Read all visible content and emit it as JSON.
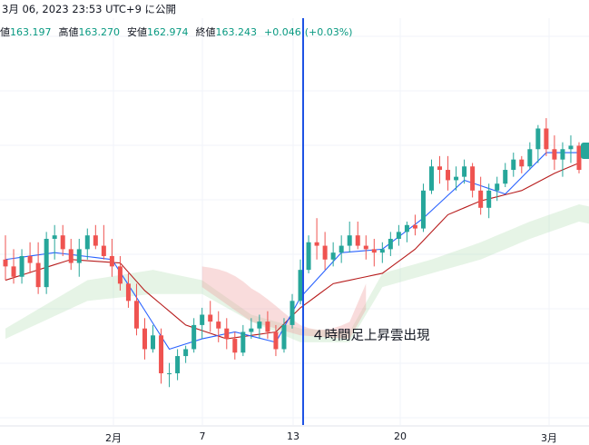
{
  "header": {
    "datetime_line": "3月 06, 2023 23:53 UTC+9 に公開"
  },
  "ohlc": {
    "open_label": "値",
    "open_value": "163.197",
    "high_label": "高値",
    "high_value": "163.270",
    "low_label": "安値",
    "low_value": "162.974",
    "close_label": "終値",
    "close_value": "163.243",
    "change": "+0.046",
    "change_pct": "(+0.03%)"
  },
  "annotation": "４時間足上昇雲出現",
  "colors": {
    "up": "#26a69a",
    "down": "#ef5350",
    "tenkan": "#2962ff",
    "kijun": "#b71c1c",
    "cloud_bull": "#a5d6a7",
    "cloud_bear": "#ef9a9a",
    "vline": "#1e53e5"
  },
  "chart_data": {
    "type": "candlestick",
    "x_ticks": [
      "2月",
      "7",
      "13",
      "20",
      "3月"
    ],
    "current_price": 163.243,
    "ohlc": [
      [
        130.6,
        131.3,
        130.0,
        130.4
      ],
      [
        130.4,
        130.9,
        129.9,
        130.1
      ],
      [
        130.1,
        130.9,
        129.9,
        130.7
      ],
      [
        130.7,
        131.1,
        130.2,
        130.5
      ],
      [
        130.5,
        131.1,
        129.6,
        129.8
      ],
      [
        129.8,
        131.4,
        129.6,
        131.2
      ],
      [
        131.2,
        131.6,
        130.6,
        131.3
      ],
      [
        131.3,
        131.6,
        130.7,
        130.9
      ],
      [
        130.9,
        131.2,
        130.3,
        130.5
      ],
      [
        130.5,
        131.2,
        130.1,
        130.9
      ],
      [
        130.9,
        131.5,
        130.6,
        131.3
      ],
      [
        131.3,
        131.6,
        130.9,
        131.0
      ],
      [
        131.0,
        131.6,
        130.6,
        130.7
      ],
      [
        130.7,
        131.2,
        130.1,
        130.4
      ],
      [
        130.4,
        130.7,
        129.7,
        129.9
      ],
      [
        129.9,
        130.2,
        129.2,
        129.4
      ],
      [
        129.4,
        129.9,
        128.4,
        128.6
      ],
      [
        128.6,
        128.9,
        127.7,
        128.0
      ],
      [
        128.0,
        128.7,
        127.9,
        128.4
      ],
      [
        128.4,
        128.6,
        127.0,
        127.3
      ],
      [
        127.3,
        127.6,
        126.9,
        127.3
      ],
      [
        127.3,
        128.0,
        127.1,
        127.8
      ],
      [
        127.8,
        128.1,
        127.6,
        128.0
      ],
      [
        128.0,
        128.9,
        127.9,
        128.7
      ],
      [
        128.7,
        129.2,
        128.3,
        129.0
      ],
      [
        129.0,
        129.4,
        128.5,
        128.8
      ],
      [
        128.8,
        129.1,
        128.2,
        128.6
      ],
      [
        128.6,
        128.9,
        128.0,
        128.3
      ],
      [
        128.3,
        128.5,
        127.7,
        127.9
      ],
      [
        127.9,
        128.7,
        127.8,
        128.5
      ],
      [
        128.5,
        128.9,
        128.3,
        128.6
      ],
      [
        128.6,
        129.0,
        128.3,
        128.8
      ],
      [
        128.8,
        129.1,
        128.3,
        128.5
      ],
      [
        128.5,
        128.7,
        127.8,
        128.0
      ],
      [
        128.0,
        128.9,
        127.9,
        128.7
      ],
      [
        128.7,
        129.6,
        128.6,
        129.4
      ],
      [
        129.4,
        130.6,
        129.3,
        130.3
      ],
      [
        130.3,
        131.3,
        130.2,
        131.1
      ],
      [
        131.1,
        131.8,
        130.6,
        131.0
      ],
      [
        131.0,
        131.4,
        130.3,
        130.6
      ],
      [
        130.6,
        131.1,
        130.4,
        130.8
      ],
      [
        130.8,
        131.3,
        130.5,
        131.0
      ],
      [
        131.0,
        131.7,
        130.8,
        131.3
      ],
      [
        131.3,
        131.7,
        130.9,
        131.0
      ],
      [
        131.0,
        131.3,
        130.6,
        130.9
      ],
      [
        130.9,
        131.2,
        130.4,
        130.8
      ],
      [
        130.8,
        131.1,
        130.5,
        130.9
      ],
      [
        130.9,
        131.4,
        130.7,
        131.2
      ],
      [
        131.2,
        131.6,
        131.0,
        131.4
      ],
      [
        131.4,
        131.7,
        131.1,
        131.6
      ],
      [
        131.6,
        131.9,
        131.3,
        131.5
      ],
      [
        131.5,
        132.8,
        131.4,
        132.6
      ],
      [
        132.6,
        133.5,
        132.5,
        133.3
      ],
      [
        133.3,
        133.6,
        132.8,
        133.2
      ],
      [
        133.2,
        133.6,
        132.6,
        132.9
      ],
      [
        132.9,
        133.3,
        132.6,
        133.0
      ],
      [
        133.0,
        133.5,
        132.8,
        133.3
      ],
      [
        133.3,
        133.4,
        132.4,
        132.6
      ],
      [
        132.6,
        133.0,
        131.9,
        132.1
      ],
      [
        132.1,
        132.8,
        131.8,
        132.6
      ],
      [
        132.6,
        133.0,
        132.3,
        132.8
      ],
      [
        132.8,
        133.4,
        132.7,
        133.2
      ],
      [
        133.2,
        133.7,
        133.0,
        133.5
      ],
      [
        133.5,
        133.6,
        133.1,
        133.3
      ],
      [
        133.3,
        134.0,
        133.2,
        133.8
      ],
      [
        133.8,
        134.5,
        133.4,
        134.4
      ],
      [
        134.4,
        134.7,
        133.6,
        133.8
      ],
      [
        133.8,
        134.2,
        133.2,
        133.5
      ],
      [
        133.5,
        134.0,
        133.0,
        133.8
      ],
      [
        133.8,
        134.2,
        133.4,
        133.9
      ],
      [
        133.9,
        134.0,
        133.1,
        133.2
      ]
    ],
    "tenkan_points": [
      [
        0,
        130.6
      ],
      [
        6,
        130.8
      ],
      [
        13,
        130.6
      ],
      [
        16,
        129.5
      ],
      [
        20,
        128.0
      ],
      [
        24,
        128.3
      ],
      [
        28,
        128.5
      ],
      [
        33,
        128.2
      ],
      [
        36,
        129.5
      ],
      [
        41,
        130.8
      ],
      [
        46,
        130.9
      ],
      [
        51,
        131.8
      ],
      [
        56,
        132.9
      ],
      [
        61,
        132.5
      ],
      [
        66,
        133.7
      ],
      [
        70,
        133.7
      ]
    ],
    "kijun_points": [
      [
        0,
        130.0
      ],
      [
        8,
        130.6
      ],
      [
        14,
        130.5
      ],
      [
        17,
        129.7
      ],
      [
        22,
        128.7
      ],
      [
        27,
        128.3
      ],
      [
        33,
        128.5
      ],
      [
        36,
        129.2
      ],
      [
        40,
        129.9
      ],
      [
        46,
        130.2
      ],
      [
        50,
        130.9
      ],
      [
        54,
        131.9
      ],
      [
        58,
        132.3
      ],
      [
        63,
        132.6
      ],
      [
        67,
        133.1
      ],
      [
        70,
        133.4
      ]
    ],
    "cloud_upper": [
      [
        0,
        128.6
      ],
      [
        10,
        130.0
      ],
      [
        18,
        130.3
      ],
      [
        24,
        130.0
      ],
      [
        30,
        129.0
      ],
      [
        36,
        128.6
      ],
      [
        42,
        128.5
      ],
      [
        46,
        130.2
      ],
      [
        52,
        130.6
      ],
      [
        58,
        131.1
      ],
      [
        64,
        131.7
      ],
      [
        70,
        132.2
      ],
      [
        74,
        132.0
      ]
    ],
    "cloud_lower": [
      [
        0,
        128.3
      ],
      [
        10,
        129.4
      ],
      [
        18,
        129.6
      ],
      [
        24,
        129.6
      ],
      [
        30,
        128.8
      ],
      [
        36,
        128.2
      ],
      [
        42,
        128.2
      ],
      [
        46,
        129.8
      ],
      [
        52,
        130.2
      ],
      [
        58,
        130.6
      ],
      [
        64,
        131.2
      ],
      [
        70,
        131.7
      ],
      [
        74,
        131.5
      ]
    ],
    "bear_cloud_range": [
      24,
      44
    ]
  }
}
